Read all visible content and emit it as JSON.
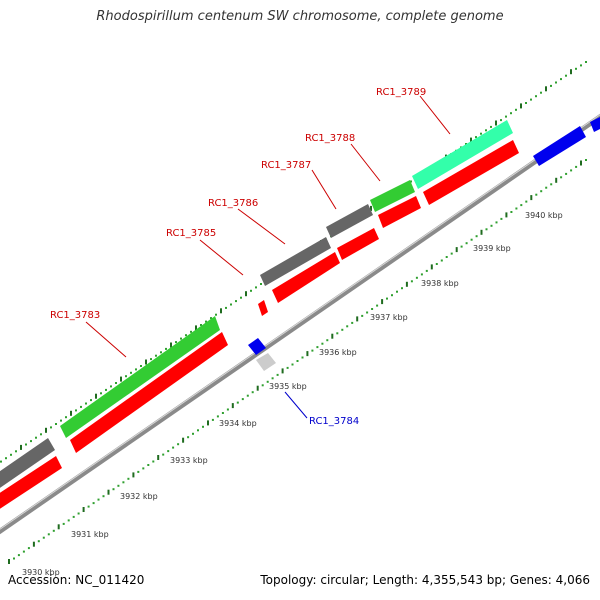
{
  "title": "Rhodospirillum centenum SW chromosome, complete genome",
  "footer": {
    "accession": "Accession: NC_011420",
    "summary": "Topology: circular; Length: 4,355,543 bp; Genes: 4,066"
  },
  "colors": {
    "backbone": "#7f7f7f",
    "tick_dark": "#1f6b1f",
    "tick_light": "#2f9f2f",
    "label_red": "#cc0000",
    "label_blue": "#0000cc",
    "gene_red": "#ff0000",
    "gene_green": "#33cc33",
    "gene_gray": "#666666",
    "gene_lightgray": "#cccccc",
    "gene_blue": "#0000ee",
    "gene_teal": "#33ffaa"
  },
  "scale_labels": [
    "3930 kbp",
    "3931 kbp",
    "3932 kbp",
    "3933 kbp",
    "3934 kbp",
    "3935 kbp",
    "3936 kbp",
    "3937 kbp",
    "3938 kbp",
    "3939 kbp",
    "3940 kbp"
  ],
  "gene_labels": {
    "rc1_3783": "RC1_3783",
    "rc1_3784": "RC1_3784",
    "rc1_3785": "RC1_3785",
    "rc1_3786": "RC1_3786",
    "rc1_3787": "RC1_3787",
    "rc1_3788": "RC1_3788",
    "rc1_3789": "RC1_3789"
  }
}
